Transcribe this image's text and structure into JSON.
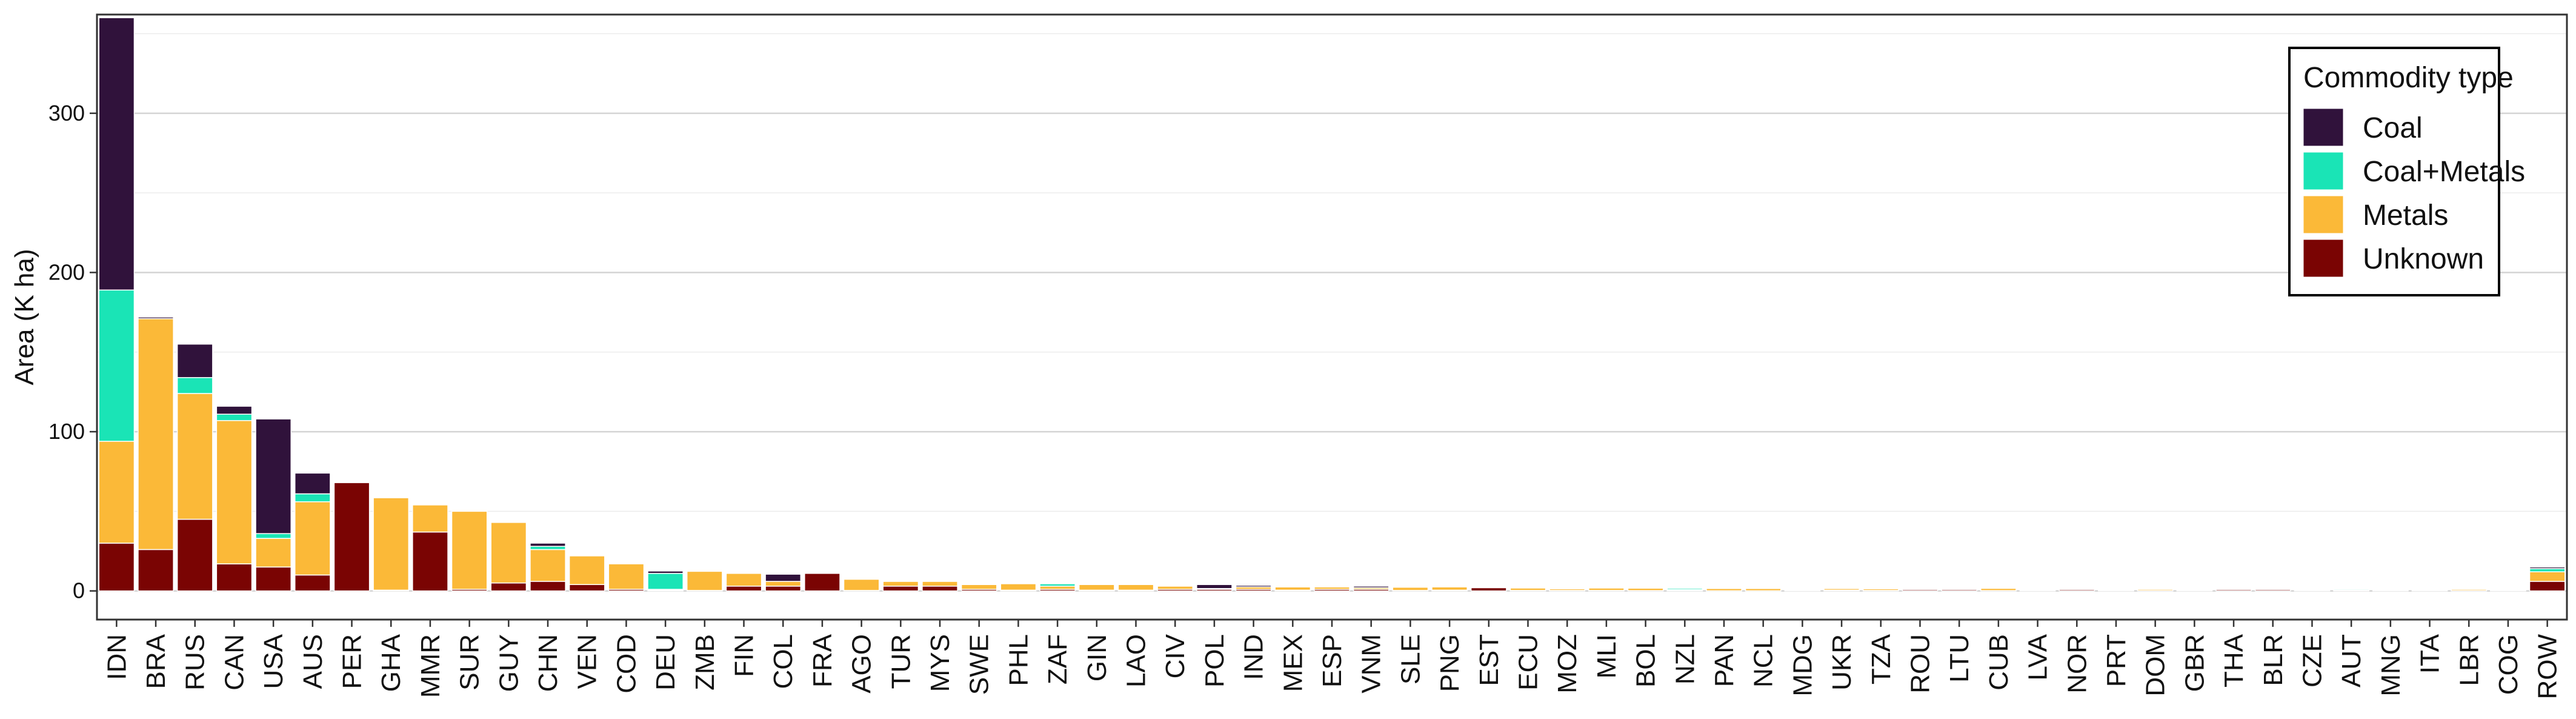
{
  "chart_data": {
    "type": "bar",
    "stacked": true,
    "title": "",
    "xlabel": "",
    "ylabel": "Area (K ha)",
    "ylim": [
      -18,
      362
    ],
    "y_ticks": [
      0,
      100,
      200,
      300
    ],
    "grid": true,
    "legend": {
      "title": "Commodity type",
      "position": "top-right"
    },
    "categories": [
      "IDN",
      "BRA",
      "RUS",
      "CAN",
      "USA",
      "AUS",
      "PER",
      "GHA",
      "MMR",
      "SUR",
      "GUY",
      "CHN",
      "VEN",
      "COD",
      "DEU",
      "ZMB",
      "FIN",
      "COL",
      "FRA",
      "AGO",
      "TUR",
      "MYS",
      "SWE",
      "PHL",
      "ZAF",
      "GIN",
      "LAO",
      "CIV",
      "POL",
      "IND",
      "MEX",
      "ESP",
      "VNM",
      "SLE",
      "PNG",
      "EST",
      "ECU",
      "MOZ",
      "MLI",
      "BOL",
      "NZL",
      "PAN",
      "NCL",
      "MDG",
      "UKR",
      "TZA",
      "ROU",
      "LTU",
      "CUB",
      "LVA",
      "NOR",
      "PRT",
      "DOM",
      "GBR",
      "THA",
      "BLR",
      "CZE",
      "AUT",
      "MNG",
      "ITA",
      "LBR",
      "COG",
      "ROW"
    ],
    "series": [
      {
        "name": "Unknown",
        "color": "#7a0403",
        "values": [
          30,
          26,
          45,
          17,
          15,
          10,
          68,
          0.5,
          37,
          1,
          5,
          6,
          4,
          1,
          0.5,
          0.3,
          3,
          3,
          11,
          0.3,
          3,
          3,
          1,
          0.5,
          1,
          0.5,
          0.5,
          1,
          1,
          1,
          0.5,
          1,
          1,
          0.3,
          0.5,
          2,
          0.3,
          0.3,
          0.3,
          0.2,
          0.3,
          0.1,
          0.1,
          0.5,
          0.5,
          0.3,
          0.8,
          0.8,
          0.2,
          0.5,
          0.8,
          0.5,
          0.2,
          0.3,
          0.8,
          0.8,
          0.5,
          0.3,
          0.2,
          0.5,
          0.2,
          0.5,
          6
        ]
      },
      {
        "name": "Metals",
        "color": "#fbb938",
        "values": [
          64,
          145,
          79,
          90,
          18,
          46,
          0,
          58,
          17,
          49,
          38,
          20,
          18,
          16,
          0.5,
          12,
          8,
          3,
          0,
          7,
          3,
          3,
          3,
          4,
          2,
          3.5,
          3.5,
          2,
          0.5,
          1.5,
          2,
          1.5,
          1,
          2,
          2,
          0,
          1.5,
          1,
          1.5,
          1.5,
          0.5,
          1.4,
          1.4,
          0.5,
          1,
          1,
          0.2,
          0.2,
          1.4,
          0.3,
          0.2,
          0.5,
          0.8,
          0.3,
          0.2,
          0.2,
          0.5,
          0.3,
          0.5,
          0.5,
          0.8,
          0.3,
          6
        ]
      },
      {
        "name": "Coal+Metals",
        "color": "#1ae4b6",
        "values": [
          95,
          0,
          10,
          4,
          3,
          5,
          0,
          0,
          0,
          0,
          0,
          2,
          0,
          0,
          10,
          0,
          0,
          0,
          0,
          0,
          0,
          0,
          0,
          0,
          1.5,
          0,
          0,
          0,
          0,
          0,
          0,
          0,
          0,
          0,
          0,
          0,
          0,
          0.5,
          0,
          0,
          0.8,
          0,
          0,
          0,
          0,
          0,
          0,
          0,
          0,
          0,
          0,
          0,
          0,
          0.5,
          0,
          0,
          0,
          0.6,
          0.5,
          0,
          0,
          0,
          2
        ]
      },
      {
        "name": "Coal",
        "color": "#30123b",
        "values": [
          171,
          1,
          21,
          5,
          72,
          13,
          0,
          0,
          0,
          0,
          0,
          2,
          0,
          0,
          1.5,
          0,
          0,
          4.5,
          0,
          0,
          0.5,
          0.5,
          0.5,
          0,
          0.5,
          0,
          0,
          0.5,
          2.5,
          1,
          0.5,
          0.5,
          1,
          0,
          0,
          0,
          0,
          0,
          0,
          0,
          0,
          0,
          0,
          0.5,
          0.3,
          0.2,
          0.5,
          0.5,
          0,
          0.5,
          0.5,
          0,
          0,
          0,
          0.5,
          0.5,
          0.3,
          0,
          0.3,
          0,
          0,
          0.5,
          1
        ]
      }
    ]
  }
}
